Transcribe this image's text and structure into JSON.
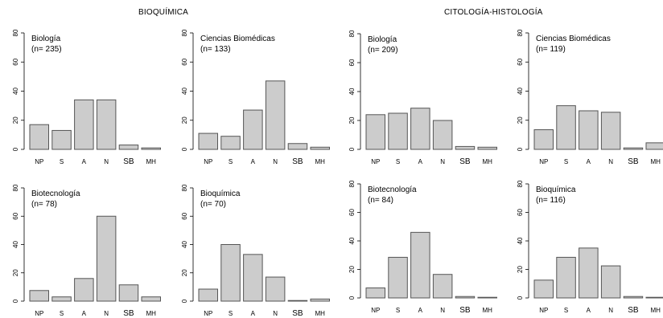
{
  "section_titles": {
    "left": "BIOQUÍMICA",
    "right": "CITOLOGÍA-HISTOLOGÍA"
  },
  "chart_data": [
    {
      "type": "bar",
      "section": "BIOQUÍMICA",
      "label": "Biología",
      "n_label": "(n= 235)",
      "categories": [
        "NP",
        "S",
        "A",
        "N",
        "SB",
        "MH"
      ],
      "values": [
        17,
        13,
        34,
        34,
        3,
        1
      ],
      "ylim": [
        0,
        80
      ],
      "yticks": [
        0,
        20,
        40,
        60,
        80
      ]
    },
    {
      "type": "bar",
      "section": "BIOQUÍMICA",
      "label": "Ciencias Biomédicas",
      "n_label": "(n= 133)",
      "categories": [
        "NP",
        "S",
        "A",
        "N",
        "SB",
        "MH"
      ],
      "values": [
        11,
        9,
        27,
        47,
        4,
        1.5
      ],
      "ylim": [
        0,
        80
      ],
      "yticks": [
        0,
        20,
        40,
        60,
        80
      ]
    },
    {
      "type": "bar",
      "section": "CITOLOGÍA-HISTOLOGÍA",
      "label": "Biología",
      "n_label": "(n= 209)",
      "categories": [
        "NP",
        "S",
        "A",
        "N",
        "SB",
        "MH"
      ],
      "values": [
        24,
        25,
        28.5,
        20,
        2,
        1.5
      ],
      "ylim": [
        0,
        80
      ],
      "yticks": [
        0,
        20,
        40,
        60,
        80
      ]
    },
    {
      "type": "bar",
      "section": "CITOLOGÍA-HISTOLOGÍA",
      "label": "Ciencias Biomédicas",
      "n_label": "(n= 119)",
      "categories": [
        "NP",
        "S",
        "A",
        "N",
        "SB",
        "MH"
      ],
      "values": [
        13.5,
        30,
        26.5,
        25.5,
        1,
        4.5
      ],
      "ylim": [
        0,
        80
      ],
      "yticks": [
        0,
        20,
        40,
        60,
        80
      ]
    },
    {
      "type": "bar",
      "section": "BIOQUÍMICA",
      "label": "Biotecnología",
      "n_label": "(n= 78)",
      "categories": [
        "NP",
        "S",
        "A",
        "N",
        "SB",
        "MH"
      ],
      "values": [
        7.5,
        3,
        16,
        60,
        11.5,
        3
      ],
      "ylim": [
        0,
        80
      ],
      "yticks": [
        0,
        20,
        40,
        60,
        80
      ]
    },
    {
      "type": "bar",
      "section": "BIOQUÍMICA",
      "label": "Bioquímica",
      "n_label": "(n= 70)",
      "categories": [
        "NP",
        "S",
        "A",
        "N",
        "SB",
        "MH"
      ],
      "values": [
        8.5,
        40,
        33,
        17,
        0,
        1.5
      ],
      "ylim": [
        0,
        80
      ],
      "yticks": [
        0,
        20,
        40,
        60,
        80
      ]
    },
    {
      "type": "bar",
      "section": "CITOLOGÍA-HISTOLOGÍA",
      "label": "Biotecnología",
      "n_label": "(n= 84)",
      "categories": [
        "NP",
        "S",
        "A",
        "N",
        "SB",
        "MH"
      ],
      "values": [
        7,
        28.5,
        46,
        16.5,
        1,
        0
      ],
      "ylim": [
        0,
        80
      ],
      "yticks": [
        0,
        20,
        40,
        60,
        80
      ]
    },
    {
      "type": "bar",
      "section": "CITOLOGÍA-HISTOLOGÍA",
      "label": "Bioquímica",
      "n_label": "(n= 116)",
      "categories": [
        "NP",
        "S",
        "A",
        "N",
        "SB",
        "MH"
      ],
      "values": [
        12.5,
        28.5,
        35,
        22.5,
        1,
        0
      ],
      "ylim": [
        0,
        80
      ],
      "yticks": [
        0,
        20,
        40,
        60,
        80
      ]
    }
  ]
}
